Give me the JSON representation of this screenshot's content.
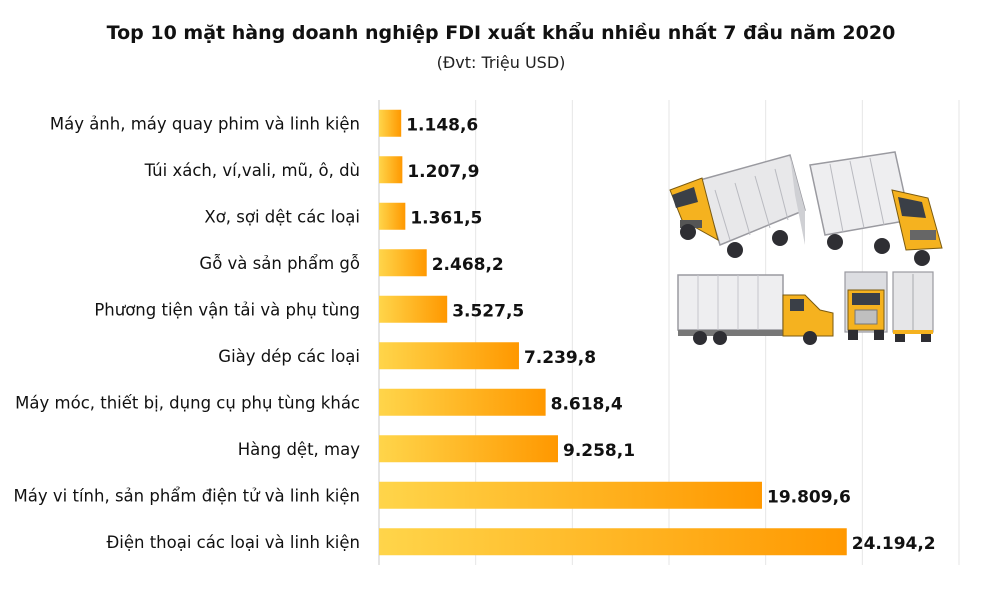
{
  "chart_data": {
    "type": "bar",
    "orientation": "horizontal",
    "title": "Top 10 mặt hàng doanh nghiệp FDI xuất khẩu nhiều nhất 7 đầu năm 2020",
    "subtitle": "(Đvt: Triệu USD)",
    "categories": [
      "Máy ảnh, máy quay phim và linh kiện",
      "Túi xách, ví,vali, mũ, ô, dù",
      "Xơ, sợi dệt các loại",
      "Gỗ và sản phẩm gỗ",
      "Phương tiện vận tải và phụ tùng",
      "Giày dép các loại",
      "Máy móc, thiết bị, dụng cụ phụ tùng khác",
      "Hàng dệt, may",
      "Máy vi tính, sản phẩm điện tử và linh kiện",
      "Điện thoại các loại và linh kiện"
    ],
    "values": [
      1148.6,
      1207.9,
      1361.5,
      2468.2,
      3527.5,
      7239.8,
      8618.4,
      9258.1,
      19809.6,
      24194.2
    ],
    "value_labels": [
      "1.148,6",
      "1.207,9",
      "1.361,5",
      "2.468,2",
      "3.527,5",
      "7.239,8",
      "8.618,4",
      "9.258,1",
      "19.809,6",
      "24.194,2"
    ],
    "xlim": [
      0,
      30000
    ],
    "grid": true,
    "colors": {
      "bar_start": "#FFD54A",
      "bar_end": "#FF9800",
      "grid": "#e6e6e6"
    }
  },
  "illustration": {
    "icon": "trucks-illustration-icon"
  }
}
